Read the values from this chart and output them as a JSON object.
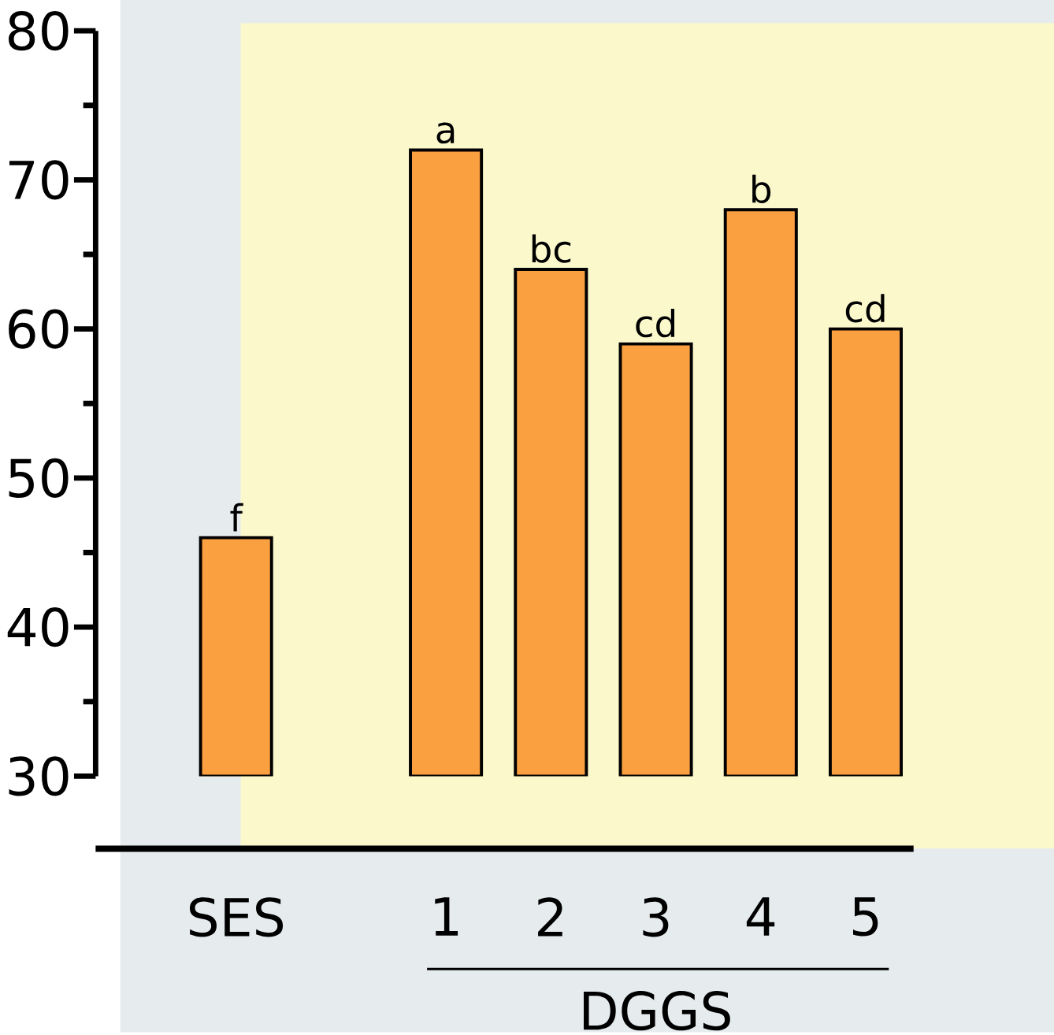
{
  "chart_data": {
    "type": "bar",
    "categories": [
      "SES",
      null,
      "1",
      "2",
      "3",
      "4",
      "5"
    ],
    "values": [
      46,
      null,
      72,
      64,
      59,
      68,
      60
    ],
    "color": "#fba040",
    "value_labels": [
      "f",
      null,
      "a",
      "bc",
      "cd",
      "b",
      "cd"
    ],
    "ylim": [
      30,
      80
    ],
    "yticks": [
      30,
      40,
      50,
      60,
      70,
      80
    ],
    "annotations": [
      "DGGS"
    ]
  }
}
